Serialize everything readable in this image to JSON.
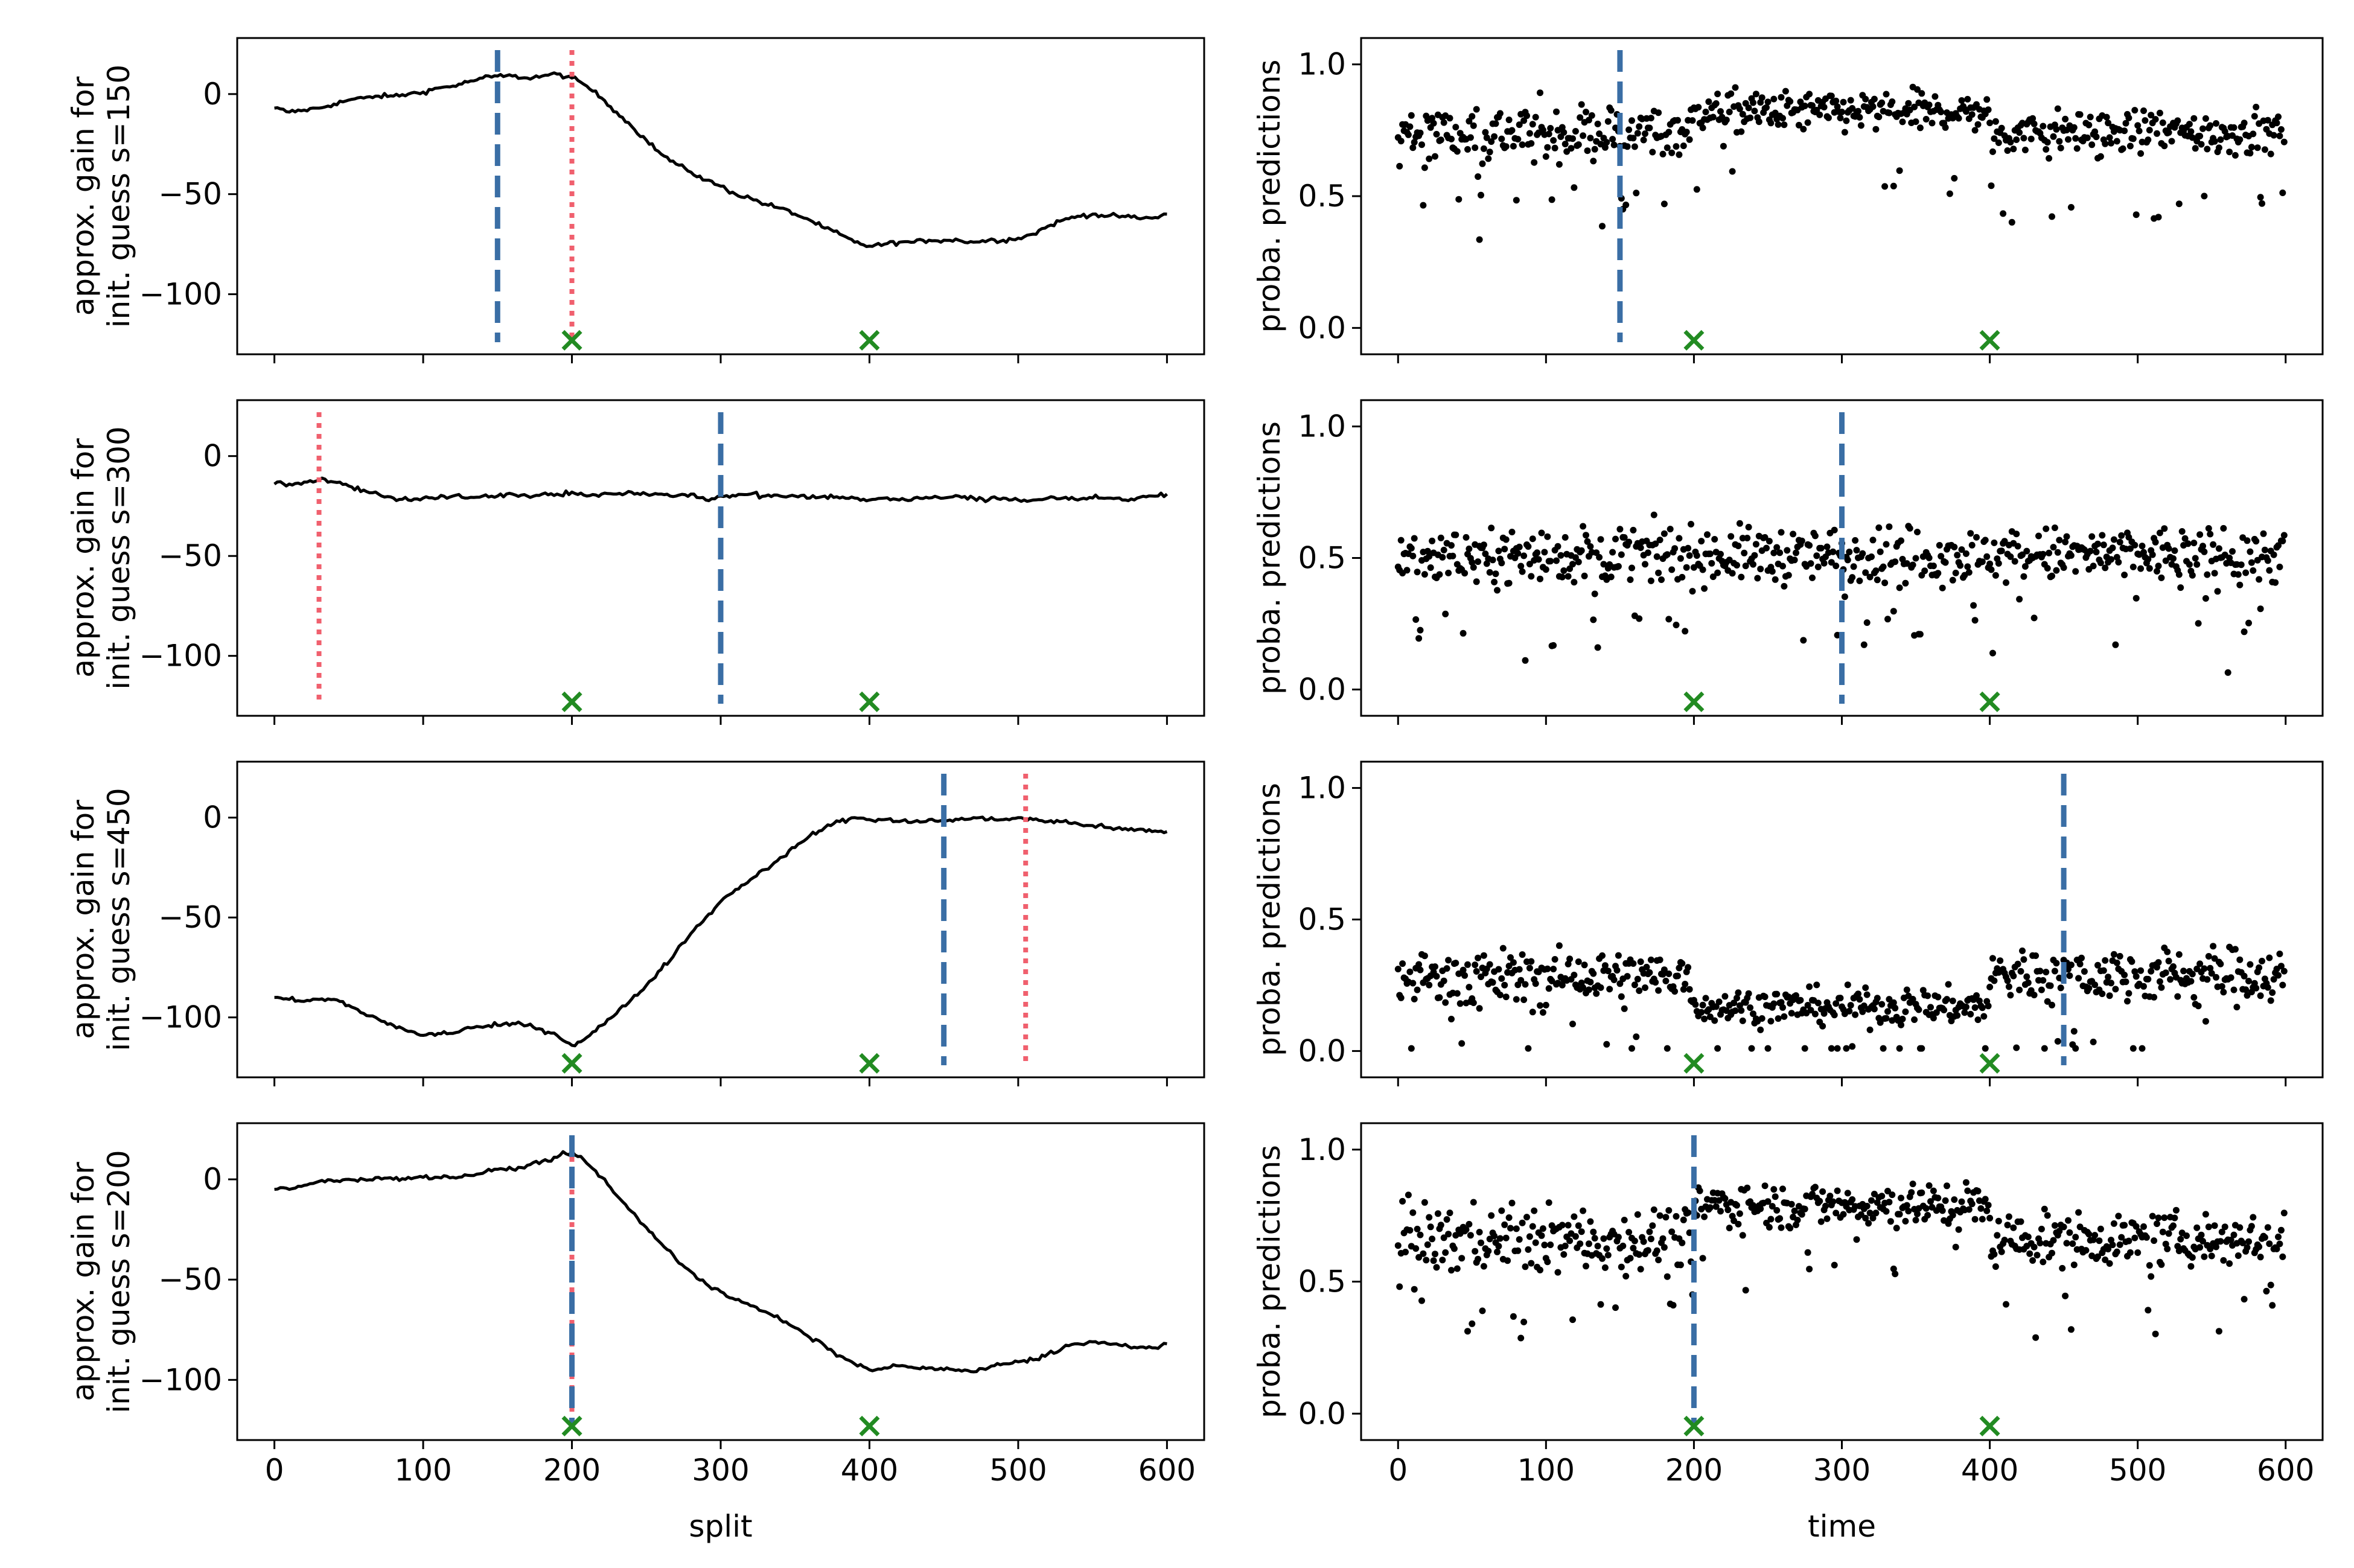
{
  "figure": {
    "colors": {
      "curve": "#000000",
      "estimate_line": "#3a6ea5",
      "reference_line": "#f0606e",
      "true_change": "#228b22",
      "points": "#000000"
    },
    "markers": {
      "true_change_symbol": "×"
    }
  },
  "chart_data": [
    {
      "type": "line",
      "panel": "row1-left",
      "ylabel_lines": [
        "approx. gain for",
        "init. guess s=150"
      ],
      "xlabel": "",
      "xlim": [
        -25,
        625
      ],
      "ylim": [
        -130,
        28
      ],
      "xticks": [
        0,
        100,
        200,
        300,
        400,
        500,
        600
      ],
      "yticks": [
        0,
        -50,
        -100
      ],
      "show_xticklabels": false,
      "x": [
        0,
        10,
        20,
        30,
        40,
        50,
        60,
        70,
        80,
        90,
        100,
        110,
        120,
        130,
        140,
        150,
        160,
        170,
        180,
        190,
        200,
        210,
        220,
        230,
        240,
        250,
        260,
        270,
        280,
        290,
        300,
        310,
        320,
        330,
        340,
        350,
        360,
        370,
        380,
        390,
        400,
        410,
        420,
        430,
        440,
        450,
        460,
        470,
        480,
        490,
        500,
        510,
        520,
        530,
        540,
        550,
        560,
        570,
        580,
        590,
        600
      ],
      "y": [
        -7,
        -9,
        -8,
        -7,
        -5,
        -3,
        -2,
        -1,
        -1,
        0,
        1,
        3,
        4,
        6,
        8,
        9,
        9,
        8,
        9,
        10,
        8,
        4,
        -2,
        -9,
        -16,
        -23,
        -30,
        -35,
        -39,
        -43,
        -46,
        -50,
        -52,
        -55,
        -57,
        -60,
        -63,
        -67,
        -70,
        -74,
        -76,
        -75,
        -74,
        -74,
        -73,
        -73,
        -73,
        -74,
        -73,
        -73,
        -72,
        -70,
        -66,
        -63,
        -61,
        -60,
        -61,
        -61,
        -62,
        -62,
        -60
      ],
      "estimate_vline": 150,
      "reference_vline": 200,
      "true_change_points": [
        200,
        400
      ]
    },
    {
      "type": "scatter",
      "panel": "row1-right",
      "ylabel": "proba. predictions",
      "xlabel": "",
      "xlim": [
        -25,
        625
      ],
      "ylim": [
        -0.1,
        1.1
      ],
      "xticks": [
        0,
        100,
        200,
        300,
        400,
        500,
        600
      ],
      "yticks": [
        0.0,
        0.5,
        1.0
      ],
      "show_xticklabels": false,
      "segments": [
        {
          "from": 0,
          "to": 150,
          "mean": 0.74,
          "spread": 0.12
        },
        {
          "from": 150,
          "to": 200,
          "mean": 0.75,
          "spread": 0.09
        },
        {
          "from": 200,
          "to": 400,
          "mean": 0.82,
          "spread": 0.08
        },
        {
          "from": 400,
          "to": 600,
          "mean": 0.74,
          "spread": 0.09
        }
      ],
      "estimate_vline": 150,
      "true_change_points": [
        200,
        400
      ]
    },
    {
      "type": "line",
      "panel": "row2-left",
      "ylabel_lines": [
        "approx. gain for",
        "init. guess s=300"
      ],
      "xlabel": "",
      "xlim": [
        -25,
        625
      ],
      "ylim": [
        -130,
        28
      ],
      "xticks": [
        0,
        100,
        200,
        300,
        400,
        500,
        600
      ],
      "yticks": [
        0,
        -50,
        -100
      ],
      "show_xticklabels": false,
      "x": [
        0,
        10,
        20,
        30,
        40,
        50,
        60,
        70,
        80,
        90,
        100,
        110,
        120,
        130,
        140,
        150,
        160,
        170,
        180,
        190,
        200,
        210,
        220,
        230,
        240,
        250,
        260,
        270,
        280,
        290,
        300,
        310,
        320,
        330,
        340,
        350,
        360,
        370,
        380,
        390,
        400,
        410,
        420,
        430,
        440,
        450,
        460,
        470,
        480,
        490,
        500,
        510,
        520,
        530,
        540,
        550,
        560,
        570,
        580,
        590,
        600
      ],
      "y": [
        -14,
        -14,
        -13,
        -12,
        -13,
        -15,
        -17,
        -19,
        -21,
        -22,
        -21,
        -21,
        -20,
        -21,
        -20,
        -20,
        -19,
        -20,
        -19,
        -19,
        -18,
        -20,
        -19,
        -19,
        -18,
        -19,
        -19,
        -20,
        -19,
        -22,
        -20,
        -20,
        -19,
        -20,
        -20,
        -20,
        -21,
        -20,
        -21,
        -21,
        -22,
        -21,
        -22,
        -21,
        -21,
        -21,
        -20,
        -21,
        -22,
        -21,
        -22,
        -22,
        -21,
        -21,
        -22,
        -21,
        -21,
        -22,
        -21,
        -20,
        -19
      ],
      "estimate_vline": 300,
      "reference_vline": 30,
      "true_change_points": [
        200,
        400
      ]
    },
    {
      "type": "scatter",
      "panel": "row2-right",
      "ylabel": "proba. predictions",
      "xlabel": "",
      "xlim": [
        -25,
        625
      ],
      "ylim": [
        -0.1,
        1.1
      ],
      "xticks": [
        0,
        100,
        200,
        300,
        400,
        500,
        600
      ],
      "yticks": [
        0.0,
        0.5,
        1.0
      ],
      "show_xticklabels": false,
      "segments": [
        {
          "from": 0,
          "to": 600,
          "mean": 0.51,
          "spread": 0.11
        }
      ],
      "estimate_vline": 300,
      "true_change_points": [
        200,
        400
      ]
    },
    {
      "type": "line",
      "panel": "row3-left",
      "ylabel_lines": [
        "approx. gain for",
        "init. guess s=450"
      ],
      "xlabel": "",
      "xlim": [
        -25,
        625
      ],
      "ylim": [
        -130,
        28
      ],
      "xticks": [
        0,
        100,
        200,
        300,
        400,
        500,
        600
      ],
      "yticks": [
        0,
        -50,
        -100
      ],
      "show_xticklabels": false,
      "x": [
        0,
        10,
        20,
        30,
        40,
        50,
        60,
        70,
        80,
        90,
        100,
        110,
        120,
        130,
        140,
        150,
        160,
        170,
        180,
        190,
        200,
        210,
        220,
        230,
        240,
        250,
        260,
        270,
        280,
        290,
        300,
        310,
        320,
        330,
        340,
        350,
        360,
        370,
        380,
        390,
        400,
        410,
        420,
        430,
        440,
        450,
        460,
        470,
        480,
        490,
        500,
        510,
        520,
        530,
        540,
        550,
        560,
        570,
        580,
        590,
        600
      ],
      "y": [
        -90,
        -91,
        -92,
        -91,
        -91,
        -94,
        -98,
        -101,
        -104,
        -107,
        -109,
        -108,
        -108,
        -105,
        -105,
        -104,
        -103,
        -104,
        -106,
        -109,
        -114,
        -110,
        -104,
        -98,
        -91,
        -84,
        -76,
        -67,
        -58,
        -50,
        -42,
        -36,
        -31,
        -26,
        -20,
        -15,
        -9,
        -5,
        -2,
        0,
        -1,
        -1,
        -2,
        -2,
        -1,
        -2,
        -1,
        0,
        -1,
        -1,
        0,
        -1,
        -2,
        -2,
        -3,
        -4,
        -5,
        -6,
        -6,
        -7,
        -7
      ],
      "estimate_vline": 450,
      "reference_vline": 505,
      "true_change_points": [
        200,
        400
      ]
    },
    {
      "type": "scatter",
      "panel": "row3-right",
      "ylabel": "proba. predictions",
      "xlabel": "",
      "xlim": [
        -25,
        625
      ],
      "ylim": [
        -0.1,
        1.1
      ],
      "xticks": [
        0,
        100,
        200,
        300,
        400,
        500,
        600
      ],
      "yticks": [
        0.0,
        0.5,
        1.0
      ],
      "show_xticklabels": false,
      "segments": [
        {
          "from": 0,
          "to": 200,
          "mean": 0.28,
          "spread": 0.11
        },
        {
          "from": 200,
          "to": 400,
          "mean": 0.17,
          "spread": 0.07
        },
        {
          "from": 400,
          "to": 600,
          "mean": 0.29,
          "spread": 0.11
        }
      ],
      "estimate_vline": 450,
      "true_change_points": [
        200,
        400
      ]
    },
    {
      "type": "line",
      "panel": "row4-left",
      "ylabel_lines": [
        "approx. gain for",
        "init. guess s=200"
      ],
      "xlabel": "split",
      "xlim": [
        -25,
        625
      ],
      "ylim": [
        -130,
        28
      ],
      "xticks": [
        0,
        100,
        200,
        300,
        400,
        500,
        600
      ],
      "yticks": [
        0,
        -50,
        -100
      ],
      "show_xticklabels": true,
      "x": [
        0,
        10,
        20,
        30,
        40,
        50,
        60,
        70,
        80,
        90,
        100,
        110,
        120,
        130,
        140,
        150,
        160,
        170,
        180,
        190,
        200,
        210,
        220,
        230,
        240,
        250,
        260,
        270,
        280,
        290,
        300,
        310,
        320,
        330,
        340,
        350,
        360,
        370,
        380,
        390,
        400,
        410,
        420,
        430,
        440,
        450,
        460,
        470,
        480,
        490,
        500,
        510,
        520,
        530,
        540,
        550,
        560,
        570,
        580,
        590,
        600
      ],
      "y": [
        -5,
        -5,
        -3,
        -1,
        -1,
        0,
        0,
        1,
        0,
        1,
        1,
        1,
        1,
        2,
        3,
        5,
        5,
        7,
        9,
        11,
        14,
        8,
        1,
        -8,
        -16,
        -24,
        -32,
        -40,
        -46,
        -52,
        -56,
        -60,
        -63,
        -66,
        -70,
        -74,
        -79,
        -83,
        -88,
        -92,
        -95,
        -94,
        -93,
        -94,
        -94,
        -95,
        -95,
        -96,
        -94,
        -92,
        -91,
        -90,
        -87,
        -84,
        -82,
        -81,
        -82,
        -83,
        -84,
        -84,
        -82
      ],
      "estimate_vline": 200,
      "reference_vline": 200,
      "true_change_points": [
        200,
        400
      ]
    },
    {
      "type": "scatter",
      "panel": "row4-right",
      "ylabel": "proba. predictions",
      "xlabel": "time",
      "xlim": [
        -25,
        625
      ],
      "ylim": [
        -0.1,
        1.1
      ],
      "xticks": [
        0,
        100,
        200,
        300,
        400,
        500,
        600
      ],
      "yticks": [
        0.0,
        0.5,
        1.0
      ],
      "show_xticklabels": true,
      "segments": [
        {
          "from": 0,
          "to": 200,
          "mean": 0.66,
          "spread": 0.13
        },
        {
          "from": 200,
          "to": 400,
          "mean": 0.79,
          "spread": 0.09
        },
        {
          "from": 400,
          "to": 600,
          "mean": 0.66,
          "spread": 0.1
        }
      ],
      "estimate_vline": 200,
      "true_change_points": [
        200,
        400
      ]
    }
  ]
}
